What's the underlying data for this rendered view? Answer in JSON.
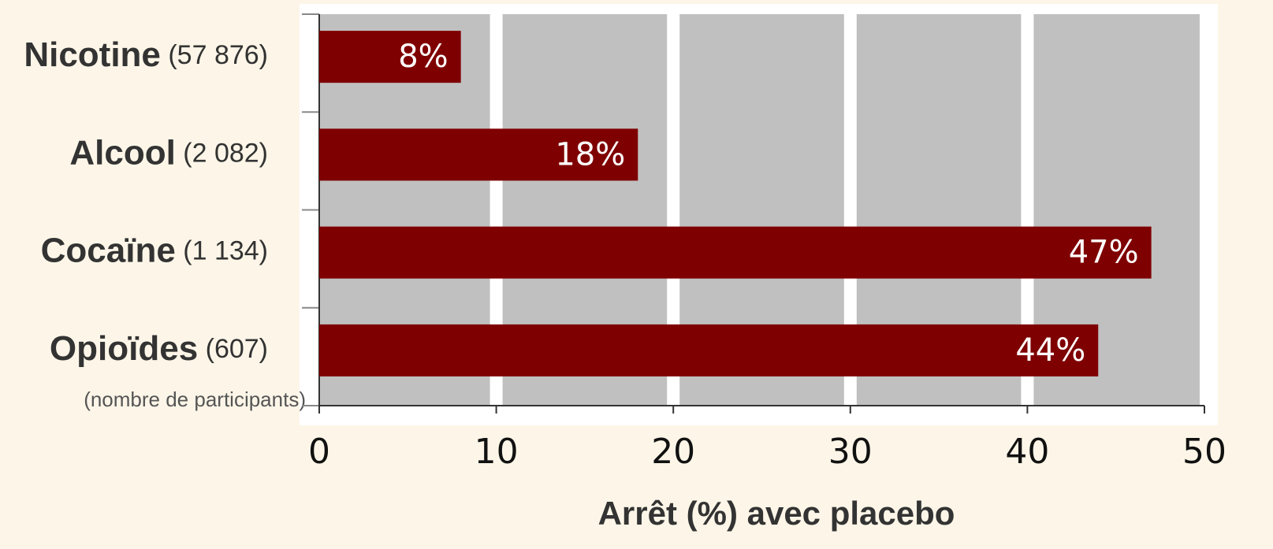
{
  "chart_data": {
    "type": "bar",
    "orientation": "horizontal",
    "categories": [
      "Nicotine",
      "Alcool",
      "Cocaïne",
      "Opioïdes"
    ],
    "category_notes": [
      "(57 876)",
      "(2 082)",
      "(1 134)",
      "(607)"
    ],
    "note": "(nombre de participants)",
    "values": [
      8,
      18,
      47,
      44
    ],
    "value_labels": [
      "8%",
      "18%",
      "47%",
      "44%"
    ],
    "color": "#7f0000",
    "xlabel": "Arrêt (%) avec placebo",
    "xlim": [
      0,
      50
    ],
    "xticks": [
      0,
      10,
      20,
      30,
      40,
      50
    ],
    "grid": true
  }
}
